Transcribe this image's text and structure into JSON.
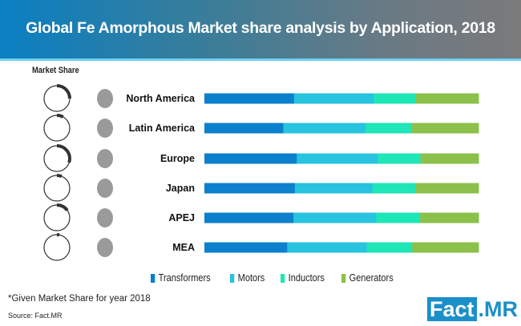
{
  "header": {
    "title": "Global Fe Amorphous Market share analysis by Application, 2018"
  },
  "market_share_label": "Market Share",
  "chart_data": {
    "type": "bar",
    "stacked": true,
    "orientation": "horizontal",
    "title": "Global Fe Amorphous Market share analysis by Application, 2018",
    "categories": [
      "North America",
      "Latin America",
      "Europe",
      "Japan",
      "APEJ",
      "MEA"
    ],
    "series": [
      {
        "name": "Transformers",
        "color": "#0b80cc",
        "values": [
          32.7,
          28.8,
          33.7,
          33.0,
          32.5,
          30.2
        ]
      },
      {
        "name": "Motors",
        "color": "#27c3df",
        "values": [
          29.1,
          30.0,
          29.5,
          28.3,
          30.2,
          29.0
        ]
      },
      {
        "name": "Inductors",
        "color": "#1ee6b6",
        "values": [
          15.3,
          16.6,
          15.6,
          15.6,
          16.0,
          16.6
        ]
      },
      {
        "name": "Generators",
        "color": "#8bc04b",
        "values": [
          22.9,
          24.6,
          21.2,
          23.1,
          21.3,
          24.2
        ]
      }
    ],
    "xlim": [
      0,
      100
    ],
    "grid": false,
    "legend": "bottom",
    "market_share_rings": [
      25,
      8,
      30,
      6,
      15,
      3
    ],
    "region_icons": [
      "north-america-map-icon",
      "latin-america-map-icon",
      "europe-map-icon",
      "japan-map-icon",
      "apej-map-icon",
      "mea-map-icon"
    ]
  },
  "footer": {
    "note": "*Given Market Share for year 2018",
    "source": "Source: Fact.MR",
    "logo": "Fact.MR"
  }
}
